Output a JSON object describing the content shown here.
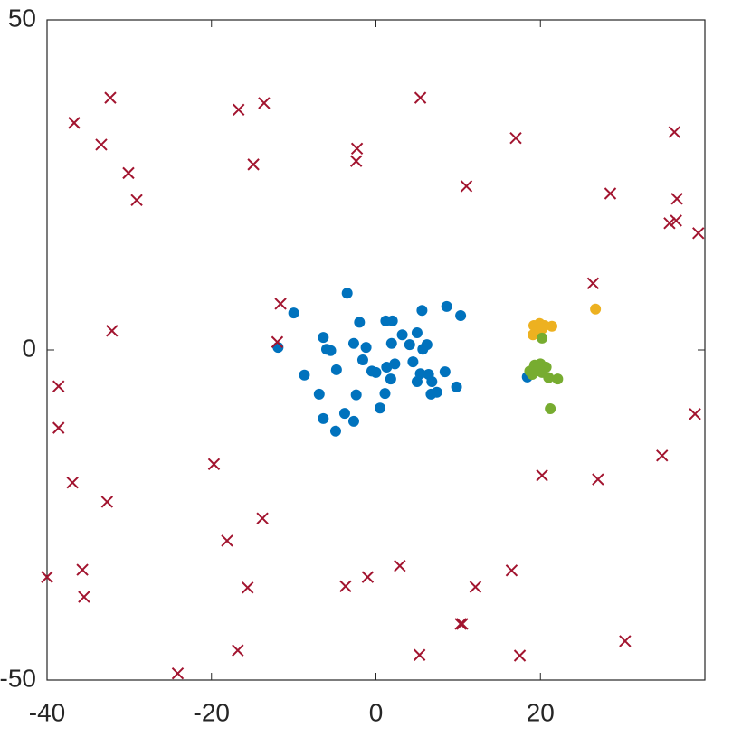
{
  "chart_data": {
    "type": "scatter",
    "xlim": [
      -40,
      40
    ],
    "ylim": [
      -50,
      50
    ],
    "xticks": [
      -40,
      -20,
      0,
      20
    ],
    "yticks": [
      -50,
      0,
      50
    ],
    "series": [
      {
        "color": "#0072bd",
        "marker": "dot",
        "x": [
          -3.5,
          -10.0,
          -2.0,
          1.2,
          2.0,
          5.6,
          8.6,
          10.3,
          -11.9,
          -6.4,
          -6.0,
          -5.5,
          -2.7,
          -1.2,
          1.9,
          3.2,
          4.1,
          5.0,
          5.7,
          6.2,
          -1.6,
          -0.5,
          0,
          2.3,
          1.3,
          4.5,
          -4.8,
          -8.7,
          1.8,
          5.4,
          6.4,
          8.4,
          5.0,
          6.8,
          9.8,
          -6.9,
          -2.4,
          1.1,
          6.7,
          7.4,
          0.5,
          -6.4,
          -3.8,
          -2.7,
          -4.9,
          18.4
        ],
        "y": [
          8.6,
          5.6,
          4.2,
          4.4,
          4.4,
          6.0,
          6.6,
          5.2,
          0.4,
          1.9,
          0.1,
          -0.1,
          1.0,
          0.4,
          1.0,
          2.3,
          0.8,
          2.6,
          0.1,
          0.8,
          -1.5,
          -3.2,
          -3.4,
          -2.1,
          -2.6,
          -1.8,
          -3.0,
          -3.8,
          -4.4,
          -3.6,
          -3.7,
          -3.3,
          -4.8,
          -4.8,
          -5.6,
          -6.7,
          -6.8,
          -6.6,
          -6.7,
          -6.4,
          -8.8,
          -10.4,
          -9.6,
          -10.8,
          -12.3,
          -4.1
        ]
      },
      {
        "color": "#edb120",
        "marker": "dot",
        "x": [
          26.7,
          19.2,
          19.9,
          20.5,
          21.4,
          19.1,
          19.8,
          20.2
        ],
        "y": [
          6.2,
          3.7,
          4.0,
          3.7,
          3.6,
          2.3,
          2.5,
          3.2
        ]
      },
      {
        "color": "#77ac30",
        "marker": "dot",
        "x": [
          20.2,
          21.2,
          18.7,
          19.3,
          20.0,
          20.7,
          19.0,
          20.2,
          21.0,
          22.1,
          19.5
        ],
        "y": [
          1.8,
          -8.9,
          -3.2,
          -2.3,
          -2.1,
          -2.6,
          -3.7,
          -3.4,
          -4.2,
          -4.4,
          -3.2
        ]
      },
      {
        "color": "#a2142f",
        "marker": "cross",
        "x": [
          -36.7,
          -32.3,
          -33.4,
          -30.1,
          -29.1,
          -16.7,
          -13.6,
          -14.9,
          -2.3,
          -2.4,
          5.4,
          17.0,
          11.0,
          36.3,
          28.5,
          36.6,
          35.7,
          36.5,
          39.2,
          26.4,
          -11.6,
          -32.1,
          -12.0,
          -38.6,
          -38.6,
          38.8,
          -36.9,
          -32.7,
          -19.7,
          -13.8,
          20.2,
          27.0,
          34.8,
          -18.1,
          -40.0,
          -35.7,
          -35.5,
          -15.6,
          -3.7,
          -1.0,
          2.9,
          12.1,
          16.5,
          10.3,
          10.5,
          -16.8,
          5.3,
          17.5,
          30.3,
          -24.1
        ],
        "y": [
          34.4,
          38.2,
          31.1,
          26.8,
          22.7,
          36.4,
          37.4,
          28.1,
          30.5,
          28.6,
          38.2,
          32.1,
          24.8,
          33.0,
          23.7,
          22.9,
          19.2,
          19.6,
          17.7,
          10.1,
          7.0,
          2.9,
          1.2,
          -5.5,
          -11.8,
          -9.7,
          -20.1,
          -23.0,
          -17.3,
          -25.5,
          -19.0,
          -19.6,
          -16.0,
          -28.9,
          -34.4,
          -33.3,
          -37.4,
          -36.0,
          -35.8,
          -34.4,
          -32.7,
          -35.9,
          -33.4,
          -41.5,
          -41.5,
          -45.5,
          -46.2,
          -46.3,
          -44.1,
          -49.0
        ]
      }
    ]
  }
}
